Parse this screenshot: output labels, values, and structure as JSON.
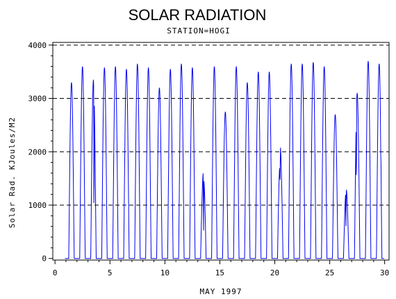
{
  "chart_data": {
    "type": "line",
    "title": "SOLAR RADIATION",
    "subtitle": "STATION=HOGI",
    "xlabel": "MAY 1997",
    "ylabel": "Solar Rad. KJoules/M2",
    "xlim": [
      -0.2,
      30.4
    ],
    "ylim": [
      -30,
      4050
    ],
    "x_ticks": [
      0,
      5,
      10,
      15,
      20,
      25,
      30
    ],
    "y_ticks": [
      0,
      1000,
      2000,
      3000,
      4000
    ],
    "x_tick_labels": [
      "0",
      "5",
      "10",
      "15",
      "20",
      "25",
      "30"
    ],
    "y_tick_labels": [
      "0",
      "1000",
      "2000",
      "3000",
      "4000"
    ],
    "grid": "horizontal-dashed",
    "series_color": "#0000ee",
    "daily_peaks": [
      {
        "day": 1,
        "peak": 3300
      },
      {
        "day": 2,
        "peak": 3600
      },
      {
        "day": 3,
        "peak": 3350,
        "dip": 200,
        "dip_frac": 0.6
      },
      {
        "day": 4,
        "peak": 3580
      },
      {
        "day": 5,
        "peak": 3600
      },
      {
        "day": 6,
        "peak": 3550
      },
      {
        "day": 7,
        "peak": 3650
      },
      {
        "day": 8,
        "peak": 3580
      },
      {
        "day": 9,
        "peak": 3200
      },
      {
        "day": 10,
        "peak": 3550
      },
      {
        "day": 11,
        "peak": 3650
      },
      {
        "day": 12,
        "peak": 3580
      },
      {
        "day": 13,
        "peak": 1650,
        "dip": 400,
        "dip_frac": 0.55,
        "peak2": 1500
      },
      {
        "day": 14,
        "peak": 3600
      },
      {
        "day": 15,
        "peak": 2750
      },
      {
        "day": 16,
        "peak": 3600
      },
      {
        "day": 17,
        "peak": 3300
      },
      {
        "day": 18,
        "peak": 3500
      },
      {
        "day": 19,
        "peak": 3500
      },
      {
        "day": 20,
        "peak": 1750,
        "dip": 1400,
        "dip_frac": 0.45,
        "peak2": 2150
      },
      {
        "day": 21,
        "peak": 3650
      },
      {
        "day": 22,
        "peak": 3650
      },
      {
        "day": 23,
        "peak": 3680
      },
      {
        "day": 24,
        "peak": 3600
      },
      {
        "day": 25,
        "peak": 2700
      },
      {
        "day": 26,
        "peak": 1300,
        "dip": 500,
        "dip_frac": 0.45
      },
      {
        "day": 27,
        "peak": 3100,
        "dip": 1150,
        "dip_frac": 0.35
      },
      {
        "day": 28,
        "peak": 3700
      },
      {
        "day": 29,
        "peak": 3650,
        "dip": 1900,
        "dip_frac": 0.8
      }
    ]
  }
}
